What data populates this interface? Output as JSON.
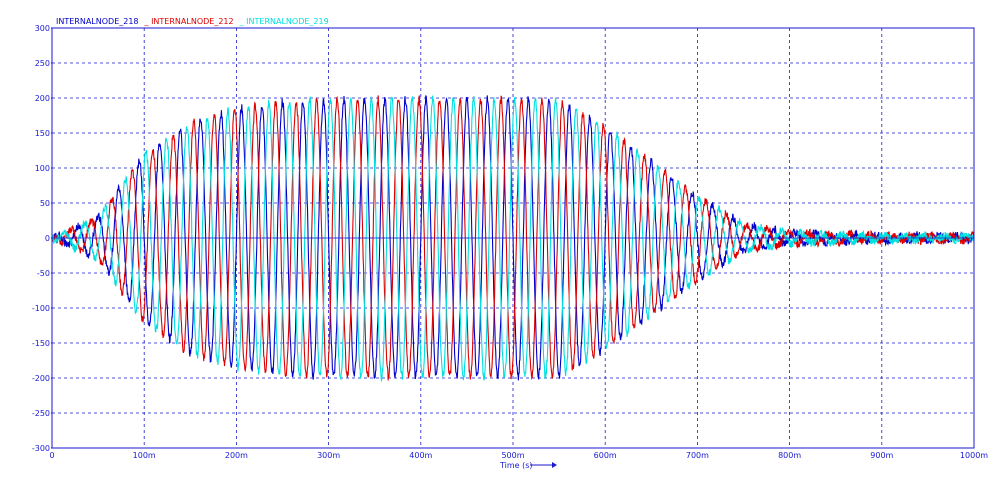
{
  "chart_data": {
    "type": "line",
    "xlabel": "Time (s)",
    "x_unit": "s",
    "xlim": [
      0,
      1
    ],
    "ylim": [
      -300,
      300
    ],
    "x_tick_labels": [
      "0",
      "100m",
      "200m",
      "300m",
      "400m",
      "500m",
      "600m",
      "700m",
      "800m",
      "900m",
      "1000m"
    ],
    "y_tick_labels": [
      "300",
      "250",
      "200",
      "150",
      "100",
      "50",
      "0",
      "-50",
      "-100",
      "-150",
      "-200",
      "-250",
      "-300"
    ],
    "grid": true,
    "legend_position": "top-left",
    "amplitude_envelope": {
      "t": [
        0,
        0.05,
        0.1,
        0.15,
        0.2,
        0.25,
        0.3,
        0.55,
        0.6,
        0.65,
        0.7,
        0.75,
        0.8,
        0.9,
        1.0
      ],
      "v": [
        0,
        30,
        120,
        165,
        185,
        195,
        198,
        198,
        160,
        110,
        60,
        20,
        8,
        4,
        3
      ]
    },
    "oscillation_frequency_hz": 45,
    "series": [
      {
        "name": "INTERNALNODE_218",
        "color": "#0000cc",
        "phase_deg": 0
      },
      {
        "name": "INTERNALNODE_212",
        "color": "#dd0000",
        "phase_deg": 120
      },
      {
        "name": "INTERNALNODE_219",
        "color": "#00e0e0",
        "phase_deg": 240
      }
    ]
  }
}
